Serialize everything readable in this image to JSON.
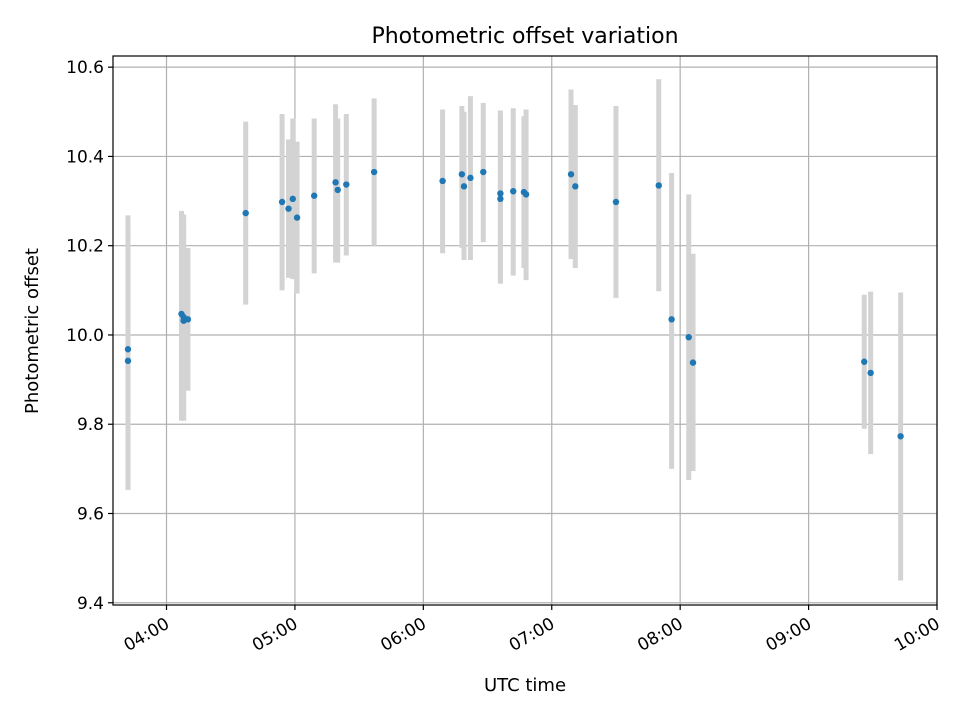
{
  "chart_data": {
    "type": "scatter",
    "title": "Photometric offset variation",
    "xlabel": "UTC time",
    "ylabel": "Photometric offset",
    "xlim": [
      "03:35",
      "10:00"
    ],
    "ylim": [
      9.395,
      10.625
    ],
    "grid": true,
    "x_ticks": [
      "04:00",
      "05:00",
      "06:00",
      "07:00",
      "08:00",
      "09:00",
      "10:00"
    ],
    "y_ticks": [
      "9.4",
      "9.6",
      "9.8",
      "10.0",
      "10.2",
      "10.4",
      "10.6"
    ],
    "series": [
      {
        "marker": "point",
        "color": "#1f77b4",
        "errorbar_color": "#d3d3d3",
        "points": [
          {
            "x": "03:42",
            "y": 9.968,
            "y_low": 9.665,
            "y_high": 10.268
          },
          {
            "x": "03:42",
            "y": 9.942,
            "y_low": 9.653,
            "y_high": 10.232
          },
          {
            "x": "04:07",
            "y": 10.047,
            "y_low": 9.808,
            "y_high": 10.278
          },
          {
            "x": "04:08",
            "y": 10.04,
            "y_low": 9.808,
            "y_high": 10.27
          },
          {
            "x": "04:08",
            "y": 10.032,
            "y_low": 9.808,
            "y_high": 10.255
          },
          {
            "x": "04:10",
            "y": 10.035,
            "y_low": 9.875,
            "y_high": 10.195
          },
          {
            "x": "04:37",
            "y": 10.273,
            "y_low": 10.068,
            "y_high": 10.478
          },
          {
            "x": "04:54",
            "y": 10.298,
            "y_low": 10.1,
            "y_high": 10.495
          },
          {
            "x": "04:57",
            "y": 10.283,
            "y_low": 10.128,
            "y_high": 10.438
          },
          {
            "x": "04:59",
            "y": 10.305,
            "y_low": 10.125,
            "y_high": 10.485
          },
          {
            "x": "05:01",
            "y": 10.263,
            "y_low": 10.093,
            "y_high": 10.433
          },
          {
            "x": "05:09",
            "y": 10.312,
            "y_low": 10.138,
            "y_high": 10.485
          },
          {
            "x": "05:19",
            "y": 10.342,
            "y_low": 10.162,
            "y_high": 10.517
          },
          {
            "x": "05:20",
            "y": 10.325,
            "y_low": 10.162,
            "y_high": 10.485
          },
          {
            "x": "05:24",
            "y": 10.337,
            "y_low": 10.178,
            "y_high": 10.495
          },
          {
            "x": "05:37",
            "y": 10.365,
            "y_low": 10.2,
            "y_high": 10.53
          },
          {
            "x": "06:09",
            "y": 10.345,
            "y_low": 10.183,
            "y_high": 10.505
          },
          {
            "x": "06:18",
            "y": 10.36,
            "y_low": 10.195,
            "y_high": 10.513
          },
          {
            "x": "06:19",
            "y": 10.333,
            "y_low": 10.168,
            "y_high": 10.5
          },
          {
            "x": "06:22",
            "y": 10.352,
            "y_low": 10.168,
            "y_high": 10.535
          },
          {
            "x": "06:28",
            "y": 10.365,
            "y_low": 10.208,
            "y_high": 10.52
          },
          {
            "x": "06:36",
            "y": 10.317,
            "y_low": 10.115,
            "y_high": 10.503
          },
          {
            "x": "06:36",
            "y": 10.305,
            "y_low": 10.115,
            "y_high": 10.49
          },
          {
            "x": "06:42",
            "y": 10.322,
            "y_low": 10.133,
            "y_high": 10.508
          },
          {
            "x": "06:47",
            "y": 10.32,
            "y_low": 10.15,
            "y_high": 10.49
          },
          {
            "x": "06:48",
            "y": 10.315,
            "y_low": 10.123,
            "y_high": 10.505
          },
          {
            "x": "07:09",
            "y": 10.36,
            "y_low": 10.17,
            "y_high": 10.55
          },
          {
            "x": "07:11",
            "y": 10.333,
            "y_low": 10.15,
            "y_high": 10.515
          },
          {
            "x": "07:30",
            "y": 10.298,
            "y_low": 10.083,
            "y_high": 10.513
          },
          {
            "x": "07:50",
            "y": 10.335,
            "y_low": 10.098,
            "y_high": 10.573
          },
          {
            "x": "07:56",
            "y": 10.035,
            "y_low": 9.7,
            "y_high": 10.363
          },
          {
            "x": "08:04",
            "y": 9.995,
            "y_low": 9.675,
            "y_high": 10.315
          },
          {
            "x": "08:06",
            "y": 9.938,
            "y_low": 9.695,
            "y_high": 10.182
          },
          {
            "x": "09:26",
            "y": 9.94,
            "y_low": 9.79,
            "y_high": 10.09
          },
          {
            "x": "09:29",
            "y": 9.915,
            "y_low": 9.733,
            "y_high": 10.097
          },
          {
            "x": "09:43",
            "y": 9.773,
            "y_low": 9.45,
            "y_high": 10.095
          }
        ]
      }
    ]
  }
}
